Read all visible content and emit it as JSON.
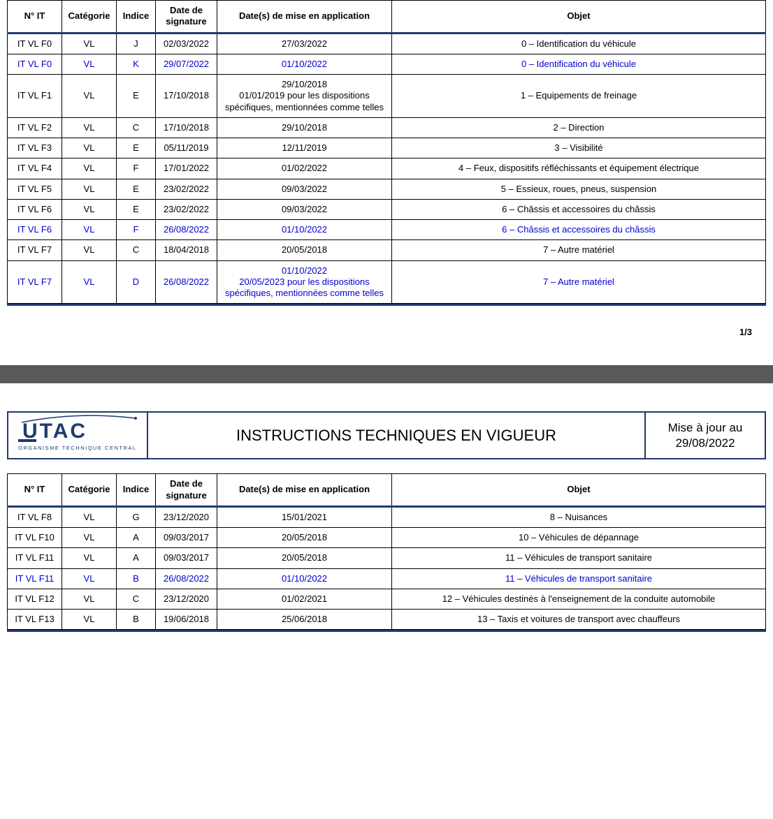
{
  "colors": {
    "border": "#000000",
    "accent": "#1f3a6e",
    "highlight_text": "#0000cc",
    "divider": "#58595b",
    "background": "#ffffff"
  },
  "typography": {
    "body_font": "Arial",
    "cell_fontsize": 13,
    "header_fontsize": 22,
    "date_fontsize": 17
  },
  "page_number": "1/3",
  "columns": [
    {
      "key": "nit",
      "label": "N° IT",
      "class": "col-nit"
    },
    {
      "key": "cat",
      "label": "Catégorie",
      "class": "col-cat"
    },
    {
      "key": "ind",
      "label": "Indice",
      "class": "col-ind"
    },
    {
      "key": "sig",
      "label": "Date de signature",
      "class": "col-sig"
    },
    {
      "key": "app",
      "label": "Date(s) de mise en application",
      "class": "col-app"
    },
    {
      "key": "obj",
      "label": "Objet",
      "class": "col-obj"
    }
  ],
  "table1": [
    {
      "nit": "IT VL F0",
      "cat": "VL",
      "ind": "J",
      "sig": "02/03/2022",
      "app": "27/03/2022",
      "obj": "0 – Identification du véhicule",
      "highlight": false
    },
    {
      "nit": "IT VL F0",
      "cat": "VL",
      "ind": "K",
      "sig": "29/07/2022",
      "app": "01/10/2022",
      "obj": "0 – Identification du véhicule",
      "highlight": true
    },
    {
      "nit": "IT VL F1",
      "cat": "VL",
      "ind": "E",
      "sig": "17/10/2018",
      "app": "29/10/2018\n01/01/2019 pour les dispositions spécifiques, mentionnées comme telles",
      "obj": "1 – Equipements de freinage",
      "highlight": false
    },
    {
      "nit": "IT VL F2",
      "cat": "VL",
      "ind": "C",
      "sig": "17/10/2018",
      "app": "29/10/2018",
      "obj": "2 – Direction",
      "highlight": false
    },
    {
      "nit": "IT VL F3",
      "cat": "VL",
      "ind": "E",
      "sig": "05/11/2019",
      "app": "12/11/2019",
      "obj": "3 – Visibilité",
      "highlight": false
    },
    {
      "nit": "IT VL F4",
      "cat": "VL",
      "ind": "F",
      "sig": "17/01/2022",
      "app": "01/02/2022",
      "obj": "4 – Feux, dispositifs réfléchissants et équipement électrique",
      "highlight": false
    },
    {
      "nit": "IT VL F5",
      "cat": "VL",
      "ind": "E",
      "sig": "23/02/2022",
      "app": "09/03/2022",
      "obj": "5 – Essieux, roues, pneus, suspension",
      "highlight": false
    },
    {
      "nit": "IT VL F6",
      "cat": "VL",
      "ind": "E",
      "sig": "23/02/2022",
      "app": "09/03/2022",
      "obj": "6 – Châssis et accessoires du châssis",
      "highlight": false
    },
    {
      "nit": "IT VL F6",
      "cat": "VL",
      "ind": "F",
      "sig": "26/08/2022",
      "app": "01/10/2022",
      "obj": "6 – Châssis et accessoires du châssis",
      "highlight": true
    },
    {
      "nit": "IT VL F7",
      "cat": "VL",
      "ind": "C",
      "sig": "18/04/2018",
      "app": "20/05/2018",
      "obj": "7 – Autre matériel",
      "highlight": false
    },
    {
      "nit": "IT VL F7",
      "cat": "VL",
      "ind": "D",
      "sig": "26/08/2022",
      "app": "01/10/2022\n20/05/2023 pour les dispositions spécifiques, mentionnées comme telles",
      "obj": "7 – Autre matériel",
      "highlight": true
    }
  ],
  "header2": {
    "logo_text": "UTAC",
    "logo_sub": "ORGANISME TECHNIQUE CENTRAL",
    "title": "INSTRUCTIONS TECHNIQUES EN VIGUEUR",
    "date_label": "Mise à jour au",
    "date_value": "29/08/2022"
  },
  "table2": [
    {
      "nit": "IT VL F8",
      "cat": "VL",
      "ind": "G",
      "sig": "23/12/2020",
      "app": "15/01/2021",
      "obj": "8 – Nuisances",
      "highlight": false
    },
    {
      "nit": "IT VL F10",
      "cat": "VL",
      "ind": "A",
      "sig": "09/03/2017",
      "app": "20/05/2018",
      "obj": "10 – Véhicules de dépannage",
      "highlight": false
    },
    {
      "nit": "IT VL F11",
      "cat": "VL",
      "ind": "A",
      "sig": "09/03/2017",
      "app": "20/05/2018",
      "obj": "11 – Véhicules de transport sanitaire",
      "highlight": false
    },
    {
      "nit": "IT VL F11",
      "cat": "VL",
      "ind": "B",
      "sig": "26/08/2022",
      "app": "01/10/2022",
      "obj": "11 – Véhicules de transport sanitaire",
      "highlight": true
    },
    {
      "nit": "IT VL F12",
      "cat": "VL",
      "ind": "C",
      "sig": "23/12/2020",
      "app": "01/02/2021",
      "obj": "12 – Véhicules destinés à l'enseignement de la conduite automobile",
      "highlight": false
    },
    {
      "nit": "IT VL F13",
      "cat": "VL",
      "ind": "B",
      "sig": "19/06/2018",
      "app": "25/06/2018",
      "obj": "13 – Taxis et voitures de transport avec chauffeurs",
      "highlight": false
    }
  ]
}
